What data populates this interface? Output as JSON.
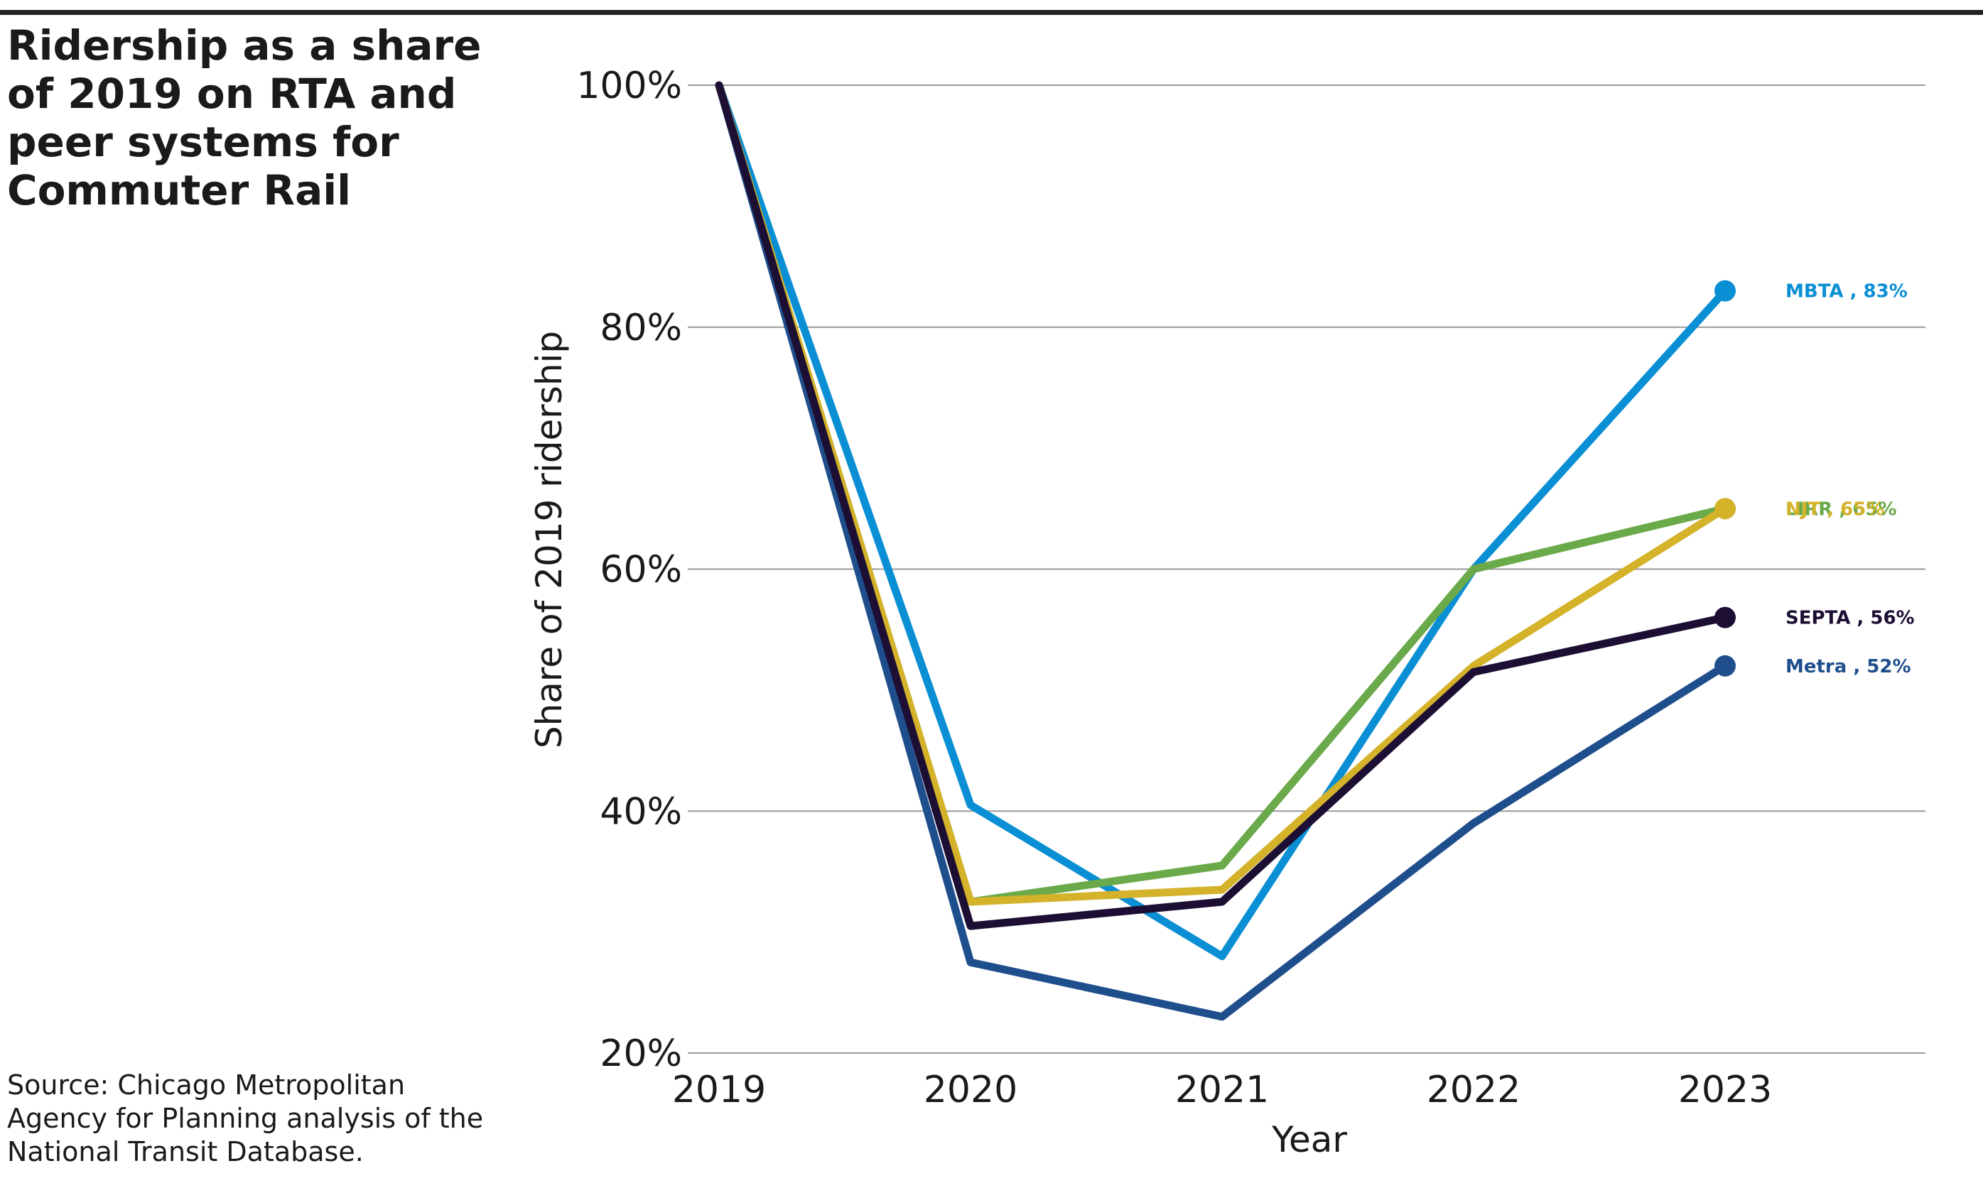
{
  "header": {
    "title": "Ridership as a share of 2019 on RTA and peer systems for Commuter Rail"
  },
  "footer": {
    "source": "Source: Chicago Metropolitan Agency for Planning analysis of the National Transit Database."
  },
  "chart_data": {
    "type": "line",
    "title": "Ridership as a share of 2019 on RTA and peer systems for Commuter Rail",
    "xlabel": "Year",
    "ylabel": "Share of 2019 ridership",
    "x": [
      "2019",
      "2020",
      "2021",
      "2022",
      "2023"
    ],
    "ylim": [
      20,
      100
    ],
    "yticks": [
      20,
      40,
      60,
      80,
      100
    ],
    "ytick_labels": [
      "20%",
      "40%",
      "60%",
      "80%",
      "100%"
    ],
    "grid": "horizontal",
    "legend": "end-labels",
    "series": [
      {
        "name": "Metra",
        "color": "#1f4e8c",
        "values": [
          100,
          27.5,
          23,
          39,
          52
        ],
        "end_label": "Metra , 52%"
      },
      {
        "name": "MBTA",
        "color": "#0a8fd4",
        "values": [
          100,
          40.5,
          28,
          60,
          83
        ],
        "end_label": "MBTA , 83%"
      },
      {
        "name": "LIRR",
        "color": "#6aaa4a",
        "values": [
          100,
          32.5,
          35.5,
          60,
          65
        ],
        "end_label": "LIRR , 65%"
      },
      {
        "name": "NJT",
        "color": "#d4b22a",
        "values": [
          100,
          32.5,
          33.5,
          52,
          65
        ],
        "end_label": "NJT , 65%"
      },
      {
        "name": "SEPTA",
        "color": "#1c0f33",
        "values": [
          100,
          30.5,
          32.5,
          51.5,
          56
        ],
        "end_label": "SEPTA , 56%"
      }
    ]
  }
}
